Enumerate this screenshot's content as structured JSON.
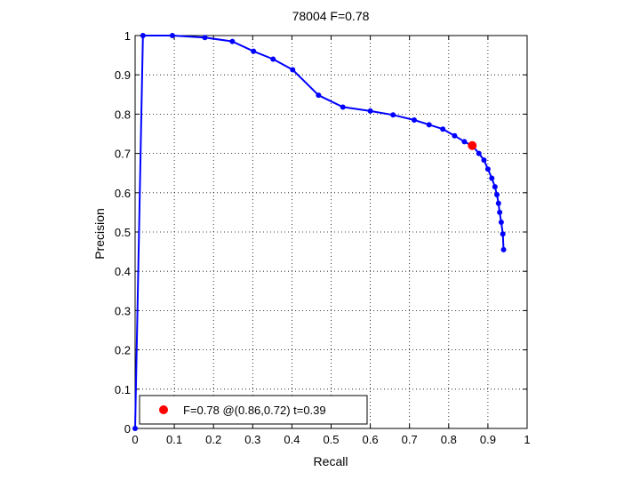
{
  "chart_data": {
    "type": "line",
    "title": "78004 F=0.78",
    "xlabel": "Recall",
    "ylabel": "Precision",
    "xlim": [
      0,
      1
    ],
    "ylim": [
      0,
      1
    ],
    "grid": true,
    "x_ticks": [
      "0",
      "0.1",
      "0.2",
      "0.3",
      "0.4",
      "0.5",
      "0.6",
      "0.7",
      "0.8",
      "0.9",
      "1"
    ],
    "y_ticks": [
      "0",
      "0.1",
      "0.2",
      "0.3",
      "0.4",
      "0.5",
      "0.6",
      "0.7",
      "0.8",
      "0.9",
      "1"
    ],
    "legend_position": "bottom-left",
    "colors": {
      "curve": "#0000ff",
      "marker": "#ff0000"
    },
    "series": [
      {
        "x": [
          0.0,
          0.02,
          0.095,
          0.178,
          0.248,
          0.302,
          0.352,
          0.402,
          0.468,
          0.53,
          0.6,
          0.658,
          0.712,
          0.75,
          0.785,
          0.815,
          0.84,
          0.862,
          0.877,
          0.89,
          0.9,
          0.91,
          0.918,
          0.923,
          0.927,
          0.93,
          0.934,
          0.938,
          0.94
        ],
        "y": [
          0.0,
          1.0,
          1.0,
          0.995,
          0.985,
          0.96,
          0.94,
          0.913,
          0.848,
          0.818,
          0.808,
          0.798,
          0.785,
          0.773,
          0.762,
          0.745,
          0.73,
          0.718,
          0.7,
          0.683,
          0.66,
          0.637,
          0.615,
          0.595,
          0.573,
          0.55,
          0.525,
          0.495,
          0.455
        ]
      }
    ],
    "highlight_point": {
      "x": 0.86,
      "y": 0.72
    },
    "legend_label": "F=0.78 @(0.86,0.72) t=0.39"
  }
}
